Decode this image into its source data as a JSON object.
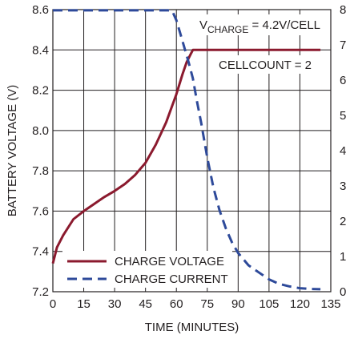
{
  "chart_data": {
    "type": "line",
    "xlabel": "TIME (MINUTES)",
    "ylabel": "BATTERY VOLTAGE (V)",
    "xlim": [
      0,
      135
    ],
    "ylim": [
      7.2,
      8.6
    ],
    "ylim_right": [
      0,
      8
    ],
    "x_ticks": [
      "0",
      "15",
      "30",
      "45",
      "60",
      "75",
      "90",
      "105",
      "120",
      "135"
    ],
    "y_ticks": [
      "7.2",
      "7.4",
      "7.6",
      "7.8",
      "8.0",
      "8.2",
      "8.4",
      "8.6"
    ],
    "y2_ticks": [
      "0",
      "1",
      "2",
      "3",
      "4",
      "5",
      "6",
      "7",
      "8"
    ],
    "grid": true,
    "legend_position": "bottom-left",
    "annotations": {
      "vcharge_prefix": "V",
      "vcharge_sub": "CHARGE",
      "vcharge_rest": " = 4.2V/CELL",
      "cellcount": "CELLCOUNT = 2"
    },
    "series": [
      {
        "name": "CHARGE VOLTAGE",
        "color": "#8b1a2e",
        "dash": "solid",
        "axis": "left",
        "points": [
          [
            0,
            7.34
          ],
          [
            2,
            7.42
          ],
          [
            5,
            7.48
          ],
          [
            10,
            7.56
          ],
          [
            15,
            7.6
          ],
          [
            20,
            7.635
          ],
          [
            25,
            7.67
          ],
          [
            30,
            7.7
          ],
          [
            35,
            7.735
          ],
          [
            40,
            7.78
          ],
          [
            45,
            7.84
          ],
          [
            50,
            7.93
          ],
          [
            55,
            8.04
          ],
          [
            60,
            8.18
          ],
          [
            63,
            8.28
          ],
          [
            65,
            8.34
          ],
          [
            67,
            8.38
          ],
          [
            68,
            8.4
          ],
          [
            130,
            8.4
          ]
        ]
      },
      {
        "name": "CHARGE CURRENT",
        "color": "#2e4a9a",
        "dash": "dashed",
        "axis": "right",
        "points": [
          [
            0,
            7.98
          ],
          [
            56,
            7.98
          ],
          [
            58,
            7.96
          ],
          [
            60,
            7.7
          ],
          [
            62,
            7.3
          ],
          [
            64,
            6.9
          ],
          [
            66,
            6.5
          ],
          [
            68,
            6.05
          ],
          [
            70,
            5.4
          ],
          [
            72,
            4.8
          ],
          [
            75,
            3.8
          ],
          [
            78,
            2.95
          ],
          [
            81,
            2.3
          ],
          [
            84,
            1.8
          ],
          [
            87,
            1.4
          ],
          [
            90,
            1.1
          ],
          [
            95,
            0.75
          ],
          [
            100,
            0.55
          ],
          [
            105,
            0.35
          ],
          [
            110,
            0.22
          ],
          [
            115,
            0.15
          ],
          [
            120,
            0.1
          ],
          [
            125,
            0.08
          ],
          [
            130,
            0.07
          ]
        ]
      }
    ]
  }
}
